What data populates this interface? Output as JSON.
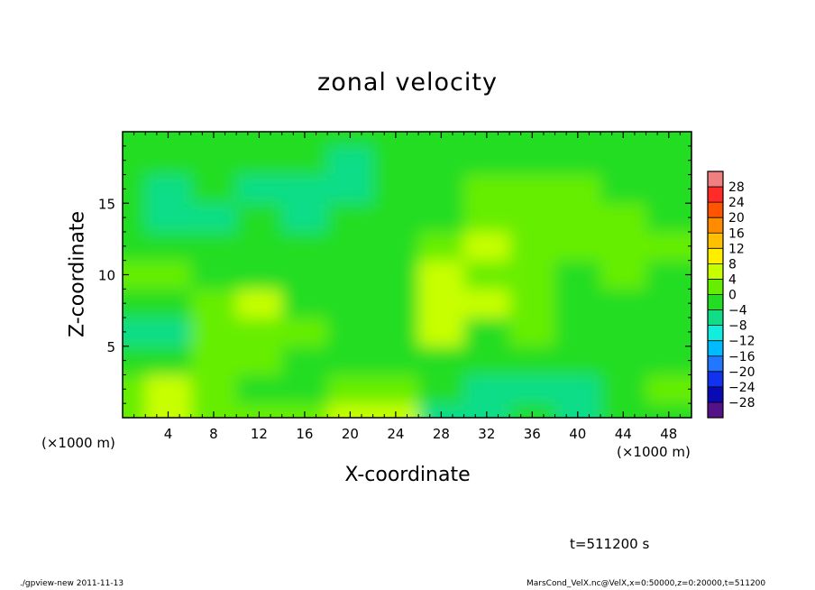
{
  "chart_data": {
    "type": "heatmap",
    "title": "zonal velocity",
    "xlabel": "X-coordinate",
    "ylabel": "Z-coordinate",
    "x_unit_label": "(×1000 m)",
    "x_ticks": [
      "4",
      "8",
      "12",
      "16",
      "20",
      "24",
      "28",
      "32",
      "36",
      "40",
      "44",
      "48"
    ],
    "x_tick_values": [
      4,
      8,
      12,
      16,
      20,
      24,
      28,
      32,
      36,
      40,
      44,
      48
    ],
    "y_ticks": [
      "5",
      "10",
      "15"
    ],
    "y_tick_values": [
      5,
      10,
      15
    ],
    "xlim": [
      0,
      50
    ],
    "ylim": [
      0,
      20
    ],
    "colorbar": {
      "labels": [
        "28",
        "24",
        "20",
        "16",
        "12",
        "8",
        "4",
        "0",
        "−4",
        "−8",
        "−12",
        "−16",
        "−20",
        "−24",
        "−28"
      ],
      "levels": [
        28,
        24,
        20,
        16,
        12,
        8,
        4,
        0,
        -4,
        -8,
        -12,
        -16,
        -20,
        -24,
        -28
      ],
      "colors": [
        "#f08080",
        "#ff2a2a",
        "#ff5500",
        "#ff8c00",
        "#ffc000",
        "#ffee00",
        "#c8ff00",
        "#66ee00",
        "#22dd22",
        "#11dd88",
        "#11eedd",
        "#00bbff",
        "#2277ff",
        "#1133ee",
        "#0a0ab4",
        "#551188"
      ]
    },
    "field_grid": {
      "x": [
        0,
        4,
        8,
        12,
        16,
        20,
        24,
        28,
        32,
        36,
        40,
        44,
        48,
        50
      ],
      "z": [
        0,
        2,
        4,
        6,
        8,
        10,
        12,
        14,
        16,
        18,
        20
      ],
      "values": [
        [
          2,
          7,
          2,
          1,
          1,
          5,
          4,
          -6,
          -8,
          -3,
          -7,
          -3,
          -3,
          -2
        ],
        [
          1,
          5,
          2,
          -1,
          -2,
          1,
          2,
          -3,
          -6,
          -6,
          -6,
          -2,
          2,
          2
        ],
        [
          -2,
          -2,
          1,
          3,
          -1,
          -2,
          -1,
          -2,
          -4,
          -1,
          -1,
          -3,
          -1,
          -1
        ],
        [
          -6,
          -6,
          1,
          2,
          0,
          -3,
          -2,
          4,
          -3,
          1,
          -2,
          -3,
          -2,
          -2
        ],
        [
          -3,
          -4,
          0,
          5,
          -2,
          -1,
          -2,
          7,
          4,
          0,
          -1,
          -2,
          -2,
          -2
        ],
        [
          0,
          0,
          -2,
          -1,
          -4,
          -2,
          -1,
          4,
          3,
          1,
          -1,
          0,
          -1,
          -1
        ],
        [
          -3,
          -4,
          -2,
          -4,
          -4,
          -2,
          -1,
          1,
          5,
          2,
          1,
          0,
          0,
          0
        ],
        [
          -4,
          -6,
          -5,
          -4,
          -5,
          -4,
          -2,
          -1,
          3,
          2,
          1,
          0,
          -1,
          -1
        ],
        [
          -4,
          -5,
          -4,
          -5,
          -6,
          -6,
          -3,
          -1,
          1,
          0,
          0,
          -1,
          -1,
          -1
        ],
        [
          -2,
          -3,
          -3,
          -4,
          -4,
          -5,
          -3,
          -1,
          -1,
          -2,
          -1,
          -2,
          -1,
          -1
        ],
        [
          -1,
          -2,
          -2,
          -2,
          -2,
          -3,
          -2,
          -1,
          -1,
          -1,
          -1,
          -1,
          -1,
          -1
        ]
      ]
    }
  },
  "annotations": {
    "time": "t=511200 s",
    "footer_left": "./gpview-new   2011-11-13",
    "footer_right": "MarsCond_VelX.nc@VelX,x=0:50000,z=0:20000,t=511200"
  }
}
